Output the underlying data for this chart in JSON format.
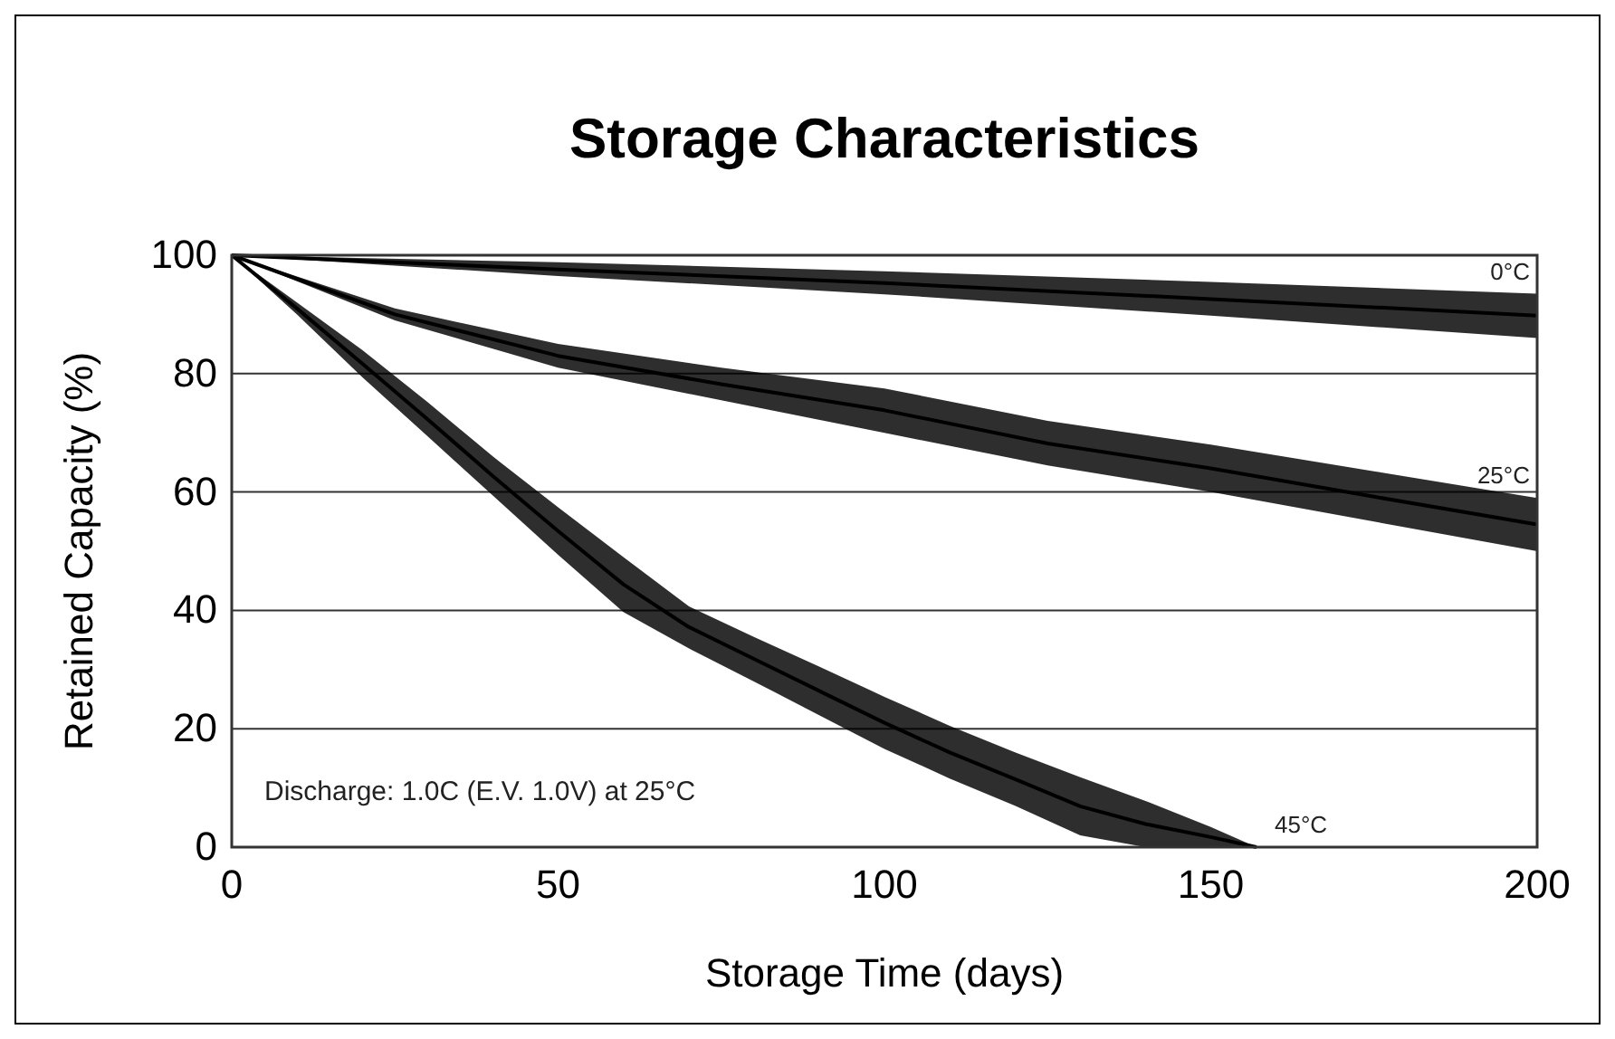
{
  "chart_data": {
    "type": "line",
    "title": "Storage Characteristics",
    "xlabel": "Storage Time (days)",
    "ylabel": "Retained Capacity (%)",
    "xlim": [
      0,
      200
    ],
    "xticks": [
      0,
      50,
      100,
      150,
      200
    ],
    "ylim": [
      0,
      100
    ],
    "yticks": [
      0,
      20,
      40,
      60,
      80,
      100
    ],
    "grid": "y",
    "marker": "none",
    "line_style": "solid",
    "annotations": [
      "Discharge: 1.0C (E.V. 1.0V) at 25°C"
    ],
    "series": [
      {
        "name": "0°C",
        "color": "#000000",
        "x": [
          0,
          50,
          100,
          150,
          200
        ],
        "values": [
          100,
          97.6,
          95.3,
          92.6,
          89.8
        ],
        "lower": [
          100,
          96.5,
          93.4,
          89.8,
          86
        ],
        "upper": [
          100,
          98.8,
          97.3,
          95.5,
          93.5
        ]
      },
      {
        "name": "25°C",
        "color": "#000000",
        "x": [
          0,
          25,
          50,
          75,
          100,
          125,
          150,
          175,
          200
        ],
        "values": [
          100,
          90,
          83,
          78.2,
          73.8,
          68.2,
          64,
          59.2,
          54.5
        ],
        "lower": [
          100,
          89,
          81,
          75.5,
          70,
          64.5,
          60,
          55,
          50
        ],
        "upper": [
          100,
          91,
          85,
          81,
          77.5,
          72,
          68,
          63.5,
          59
        ]
      },
      {
        "name": "45°C",
        "color": "#000000",
        "x": [
          0,
          10,
          20,
          30,
          40,
          50,
          60,
          70,
          80,
          90,
          100,
          110,
          120,
          130,
          140,
          150,
          157
        ],
        "values": [
          100,
          91,
          81.7,
          72.3,
          62.7,
          53.4,
          44.4,
          37.2,
          31.8,
          26.4,
          21,
          16,
          11.5,
          6.9,
          3.9,
          1.7,
          0
        ],
        "lower": [
          100,
          90,
          79.4,
          69.4,
          59.4,
          49.4,
          39.7,
          33.6,
          28,
          22.3,
          16.6,
          11.6,
          7,
          2,
          0,
          0,
          0
        ],
        "upper": [
          100,
          92,
          84,
          75.2,
          66,
          57.4,
          49,
          40.7,
          35.5,
          30.5,
          25.4,
          20.5,
          16,
          11.8,
          7.8,
          3.4,
          0
        ]
      }
    ]
  }
}
